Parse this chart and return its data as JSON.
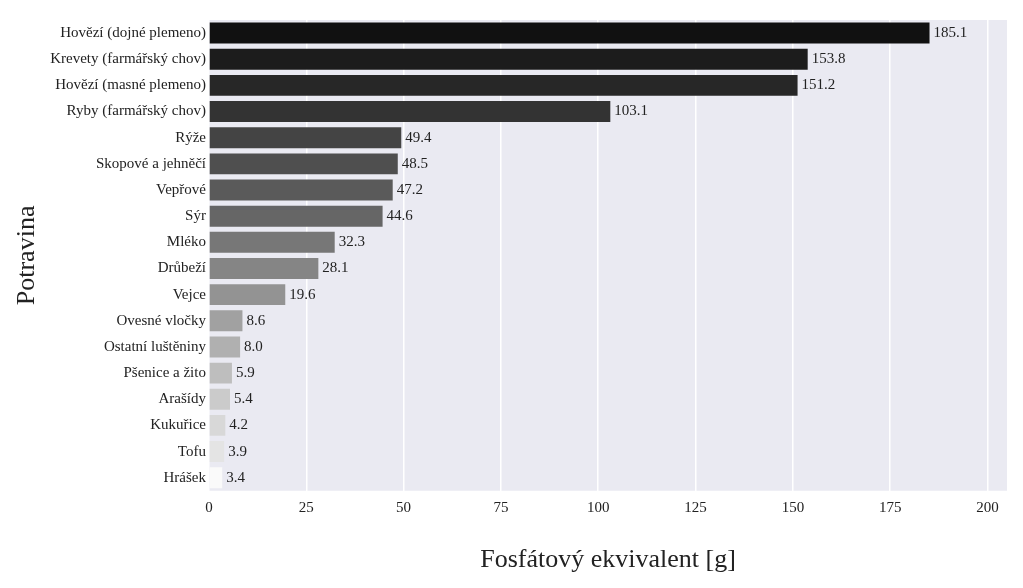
{
  "chart_data": {
    "type": "bar",
    "orientation": "horizontal",
    "xlabel": "Fosfátový ekvivalent [g]",
    "ylabel": "Potravina",
    "categories": [
      "Hovězí (dojné plemeno)",
      "Krevety (farmářský chov)",
      "Hovězí (masné plemeno)",
      "Ryby (farmářský chov)",
      "Rýže",
      "Skopové a jehněčí",
      "Vepřové",
      "Sýr",
      "Mléko",
      "Drůbeží",
      "Vejce",
      "Ovesné vločky",
      "Ostatní luštěniny",
      "Pšenice a žito",
      "Arašídy",
      "Kukuřice",
      "Tofu",
      "Hrášek"
    ],
    "values": [
      185.1,
      153.8,
      151.2,
      103.1,
      49.4,
      48.5,
      47.2,
      44.6,
      32.3,
      28.1,
      19.6,
      8.6,
      8.0,
      5.9,
      5.4,
      4.2,
      3.9,
      3.4
    ],
    "colors": [
      "#111111",
      "#1c1c1c",
      "#272727",
      "#333333",
      "#444444",
      "#4f4f4f",
      "#5a5a5a",
      "#666666",
      "#777777",
      "#858585",
      "#939393",
      "#a1a1a1",
      "#b0b0b0",
      "#bebebe",
      "#cbcbcb",
      "#d8d8d8",
      "#e4e4e4",
      "#fafafa"
    ],
    "value_labels": [
      "185.1",
      "153.8",
      "151.2",
      "103.1",
      "49.4",
      "48.5",
      "47.2",
      "44.6",
      "32.3",
      "28.1",
      "19.6",
      "8.6",
      "8.0",
      "5.9",
      "5.4",
      "4.2",
      "3.9",
      "3.4"
    ],
    "xlim": [
      0,
      205
    ],
    "xticks": [
      0,
      25,
      50,
      75,
      100,
      125,
      150,
      175,
      200
    ],
    "grid": "x"
  }
}
